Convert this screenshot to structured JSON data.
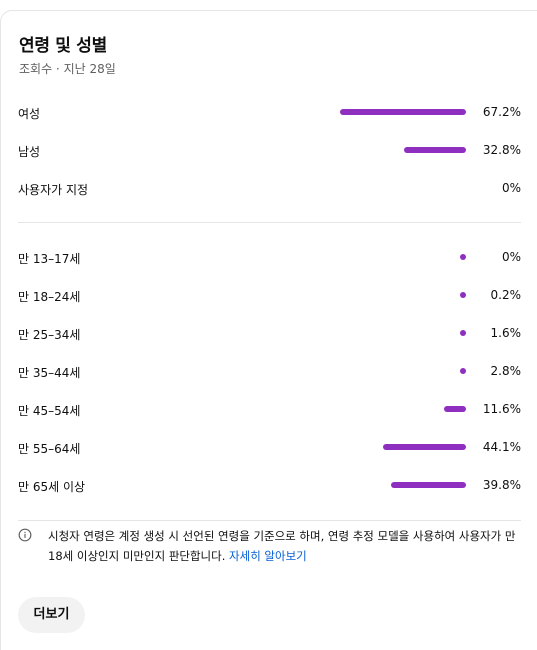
{
  "card": {
    "title": "연령 및 성별",
    "subtitle": "조회수 · 지난 28일"
  },
  "gender": [
    {
      "label": "여성",
      "value": "67.2%",
      "fraction": 0.672
    },
    {
      "label": "남성",
      "value": "32.8%",
      "fraction": 0.328
    },
    {
      "label": "사용자가 지정",
      "value": "0%",
      "fraction": 0
    }
  ],
  "age": [
    {
      "label": "만 13–17세",
      "value": "0%",
      "fraction": 0
    },
    {
      "label": "만 18–24세",
      "value": "0.2%",
      "fraction": 0.002
    },
    {
      "label": "만 25–34세",
      "value": "1.6%",
      "fraction": 0.016
    },
    {
      "label": "만 35–44세",
      "value": "2.8%",
      "fraction": 0.028
    },
    {
      "label": "만 45–54세",
      "value": "11.6%",
      "fraction": 0.116
    },
    {
      "label": "만 55–64세",
      "value": "44.1%",
      "fraction": 0.441
    },
    {
      "label": "만 65세 이상",
      "value": "39.8%",
      "fraction": 0.398
    }
  ],
  "info": {
    "text": "시청자 연령은 계정 생성 시 선언된 연령을 기준으로 하며, 연령 추정 모델을 사용하여 사용자가 만 18세 이상인지 미만인지 판단합니다.",
    "link": "자세히 알아보기",
    "icon": "info-icon"
  },
  "more_button": "더보기",
  "colors": {
    "bar": "#8e2fc0",
    "link": "#065fd4"
  }
}
